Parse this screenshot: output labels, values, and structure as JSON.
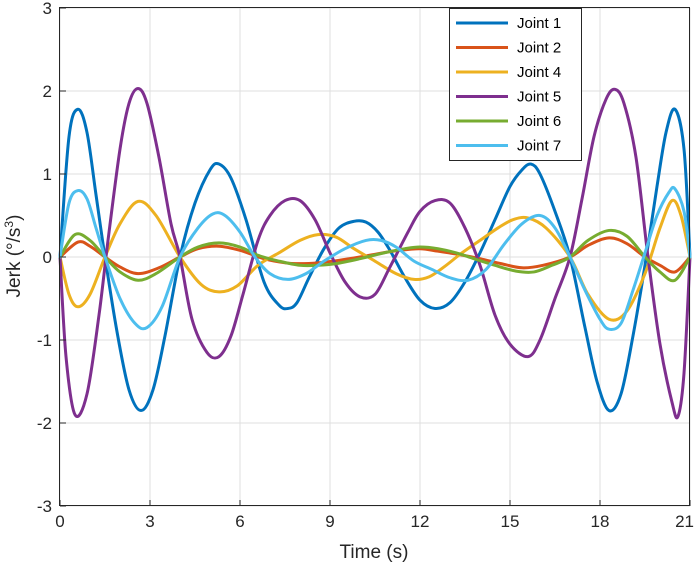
{
  "chart_data": {
    "type": "line",
    "xlabel": "Time (s)",
    "ylabel_base": "Jerk (°/s",
    "ylabel_exp": "3",
    "ylabel_close": ")",
    "xlim": [
      0,
      21
    ],
    "ylim": [
      -3,
      3
    ],
    "x_ticks": [
      0,
      3,
      6,
      9,
      12,
      15,
      18,
      21
    ],
    "y_ticks": [
      -3,
      -2,
      -1,
      0,
      1,
      2,
      3
    ],
    "x_tick_labels": [
      "0",
      "3",
      "6",
      "9",
      "12",
      "15",
      "18",
      "21"
    ],
    "y_tick_labels": [
      "-3",
      "-2",
      "-1",
      "0",
      "1",
      "2",
      "3"
    ],
    "grid": true,
    "legend_position": "top-right",
    "series": [
      {
        "name": "Joint 1",
        "color": "#0072BD",
        "x": [
          0,
          0.3,
          0.6,
          0.9,
          1.2,
          1.5,
          1.9,
          2.3,
          2.7,
          3.1,
          3.5,
          4.0,
          4.5,
          5.0,
          5.3,
          5.7,
          6.2,
          6.8,
          7.3,
          7.6,
          7.9,
          8.3,
          8.8,
          9.3,
          9.8,
          10.2,
          10.6,
          11.0,
          11.5,
          12.0,
          12.5,
          13.0,
          13.5,
          14.0,
          14.5,
          15.0,
          15.4,
          15.7,
          16.0,
          16.5,
          17.0,
          17.5,
          17.9,
          18.3,
          18.7,
          19.1,
          19.5,
          19.9,
          20.2,
          20.5,
          20.8,
          21.0
        ],
        "values": [
          0,
          1.45,
          1.78,
          1.5,
          0.75,
          0,
          -0.9,
          -1.6,
          -1.85,
          -1.6,
          -0.95,
          0,
          0.65,
          1.05,
          1.12,
          0.95,
          0.45,
          -0.3,
          -0.58,
          -0.62,
          -0.55,
          -0.25,
          0.1,
          0.35,
          0.43,
          0.42,
          0.3,
          0.08,
          -0.25,
          -0.52,
          -0.62,
          -0.55,
          -0.3,
          0.05,
          0.45,
          0.85,
          1.05,
          1.12,
          1.0,
          0.55,
          0,
          -0.85,
          -1.5,
          -1.85,
          -1.65,
          -0.95,
          -0.1,
          0.85,
          1.5,
          1.78,
          1.3,
          0
        ]
      },
      {
        "name": "Joint 2",
        "color": "#D95319",
        "x": [
          0,
          0.6,
          1.0,
          1.5,
          2.0,
          2.6,
          3.3,
          4.0,
          4.6,
          5.3,
          6.0,
          6.8,
          7.5,
          8.0,
          8.6,
          9.3,
          10.0,
          10.6,
          11.3,
          12.0,
          12.6,
          13.3,
          14.0,
          14.7,
          15.4,
          16.1,
          17.0,
          17.6,
          18.3,
          18.9,
          19.5,
          20.0,
          20.5,
          21.0
        ],
        "values": [
          0,
          0.18,
          0.13,
          0,
          -0.12,
          -0.2,
          -0.13,
          0,
          0.1,
          0.13,
          0.08,
          -0.02,
          -0.07,
          -0.08,
          -0.07,
          -0.04,
          0,
          0.04,
          0.08,
          0.1,
          0.07,
          0.03,
          -0.02,
          -0.08,
          -0.13,
          -0.1,
          0,
          0.14,
          0.23,
          0.16,
          0,
          -0.1,
          -0.18,
          0
        ]
      },
      {
        "name": "Joint 4",
        "color": "#EDB120",
        "x": [
          0,
          0.3,
          0.6,
          1.0,
          1.5,
          2.0,
          2.6,
          3.2,
          4.0,
          4.7,
          5.3,
          5.9,
          6.6,
          7.3,
          8.0,
          8.6,
          9.2,
          9.8,
          10.5,
          11.2,
          11.8,
          12.3,
          12.8,
          13.4,
          14.0,
          14.6,
          15.1,
          15.6,
          16.2,
          17.0,
          17.6,
          18.3,
          18.9,
          19.5,
          20.0,
          20.4,
          20.7,
          21.0
        ],
        "values": [
          0,
          -0.45,
          -0.6,
          -0.45,
          0,
          0.4,
          0.67,
          0.5,
          0,
          -0.33,
          -0.42,
          -0.35,
          -0.1,
          0.05,
          0.2,
          0.27,
          0.24,
          0.1,
          -0.05,
          -0.2,
          -0.27,
          -0.24,
          -0.12,
          0.05,
          0.2,
          0.35,
          0.45,
          0.47,
          0.35,
          0,
          -0.45,
          -0.75,
          -0.65,
          -0.2,
          0.35,
          0.68,
          0.5,
          0
        ]
      },
      {
        "name": "Joint 5",
        "color": "#7E2F8E",
        "x": [
          0,
          0.2,
          0.5,
          0.9,
          1.3,
          1.6,
          2.0,
          2.3,
          2.6,
          2.9,
          3.3,
          3.7,
          4.0,
          4.4,
          4.9,
          5.3,
          5.7,
          6.1,
          6.6,
          7.0,
          7.5,
          8.0,
          8.5,
          9.0,
          9.5,
          10.0,
          10.5,
          11.0,
          11.6,
          12.0,
          12.5,
          13.0,
          13.5,
          14.0,
          14.5,
          15.0,
          15.6,
          16.0,
          16.5,
          17.0,
          17.4,
          17.8,
          18.2,
          18.5,
          18.8,
          19.2,
          19.6,
          20.0,
          20.4,
          20.6,
          20.8,
          21.0
        ],
        "values": [
          0,
          -1.2,
          -1.9,
          -1.65,
          -0.7,
          0.2,
          1.3,
          1.85,
          2.03,
          1.85,
          1.2,
          0.4,
          0,
          -0.75,
          -1.15,
          -1.2,
          -0.95,
          -0.45,
          0.2,
          0.5,
          0.68,
          0.68,
          0.45,
          0.05,
          -0.3,
          -0.48,
          -0.45,
          -0.12,
          0.3,
          0.55,
          0.68,
          0.65,
          0.35,
          -0.1,
          -0.7,
          -1.05,
          -1.2,
          -1.0,
          -0.5,
          0,
          0.7,
          1.45,
          1.9,
          2.02,
          1.85,
          1.2,
          0,
          -1.05,
          -1.75,
          -1.92,
          -1.4,
          0
        ]
      },
      {
        "name": "Joint 6",
        "color": "#77AC30",
        "x": [
          0,
          0.5,
          1.0,
          1.5,
          2.0,
          2.6,
          3.2,
          4.0,
          4.6,
          5.3,
          6.0,
          6.6,
          7.3,
          8.0,
          8.6,
          9.2,
          10.0,
          10.8,
          11.5,
          12.0,
          12.6,
          13.2,
          13.8,
          14.5,
          15.2,
          15.8,
          16.4,
          17.0,
          17.6,
          18.3,
          18.9,
          19.5,
          20.0,
          20.5,
          21.0
        ],
        "values": [
          0,
          0.27,
          0.2,
          0,
          -0.18,
          -0.28,
          -0.2,
          0,
          0.12,
          0.17,
          0.12,
          0.02,
          -0.05,
          -0.1,
          -0.1,
          -0.08,
          -0.02,
          0.05,
          0.1,
          0.12,
          0.1,
          0.05,
          -0.02,
          -0.1,
          -0.17,
          -0.18,
          -0.1,
          0,
          0.2,
          0.32,
          0.25,
          0,
          -0.18,
          -0.28,
          0
        ]
      },
      {
        "name": "Joint 7",
        "color": "#4DBEEE",
        "x": [
          0,
          0.3,
          0.6,
          0.9,
          1.2,
          1.5,
          2.0,
          2.5,
          2.9,
          3.4,
          4.0,
          4.6,
          5.1,
          5.5,
          6.0,
          6.5,
          7.0,
          7.6,
          8.2,
          8.8,
          9.5,
          10.2,
          10.7,
          11.2,
          11.8,
          12.4,
          13.0,
          13.6,
          14.2,
          14.8,
          15.4,
          16.0,
          16.5,
          17.0,
          17.5,
          18.0,
          18.3,
          18.7,
          19.1,
          19.5,
          19.9,
          20.3,
          20.5,
          20.8,
          21.0
        ],
        "values": [
          0,
          0.65,
          0.8,
          0.7,
          0.35,
          0,
          -0.5,
          -0.8,
          -0.85,
          -0.6,
          0,
          0.35,
          0.52,
          0.5,
          0.3,
          0,
          -0.2,
          -0.27,
          -0.2,
          -0.05,
          0.1,
          0.2,
          0.2,
          0.12,
          -0.05,
          -0.15,
          -0.25,
          -0.28,
          -0.15,
          0.15,
          0.4,
          0.5,
          0.35,
          0,
          -0.4,
          -0.75,
          -0.87,
          -0.8,
          -0.4,
          0.05,
          0.5,
          0.78,
          0.82,
          0.55,
          0
        ]
      }
    ]
  }
}
